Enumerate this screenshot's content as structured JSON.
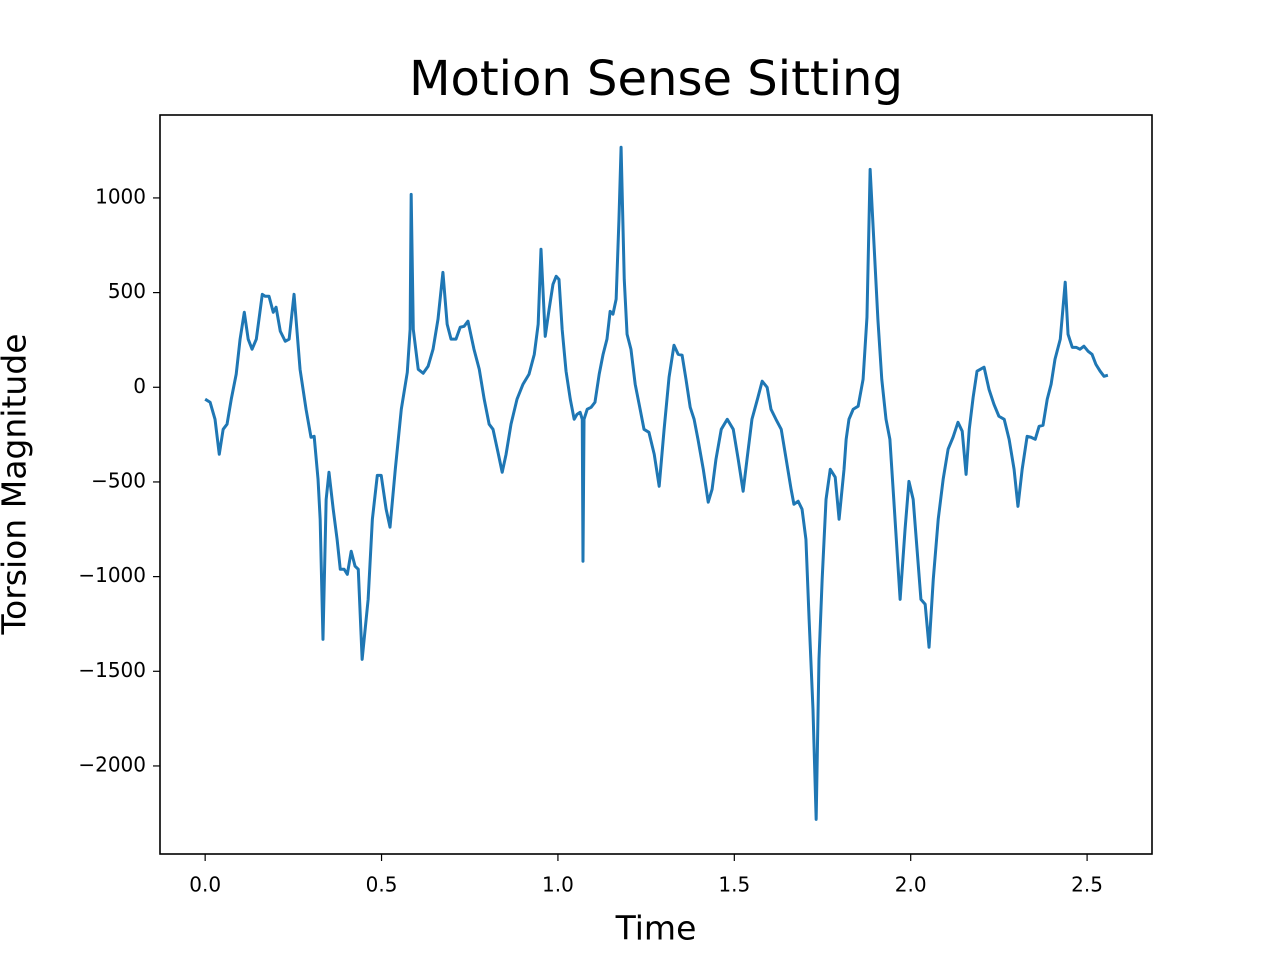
{
  "chart_data": {
    "type": "line",
    "title": "Motion Sense Sitting",
    "x_label": "Time",
    "y_label": "Torsion Magnitude",
    "color": "#1f77b4",
    "x": [
      0,
      0.014,
      0.028,
      0.04,
      0.051,
      0.062,
      0.074,
      0.088,
      0.099,
      0.111,
      0.122,
      0.133,
      0.145,
      0.162,
      0.17,
      0.181,
      0.193,
      0.201,
      0.213,
      0.227,
      0.238,
      0.252,
      0.269,
      0.286,
      0.3,
      0.309,
      0.32,
      0.326,
      0.334,
      0.343,
      0.351,
      0.363,
      0.374,
      0.383,
      0.394,
      0.403,
      0.414,
      0.425,
      0.434,
      0.445,
      0.462,
      0.474,
      0.488,
      0.499,
      0.513,
      0.524,
      0.539,
      0.556,
      0.573,
      0.581,
      0.584,
      0.59,
      0.604,
      0.618,
      0.632,
      0.646,
      0.66,
      0.674,
      0.686,
      0.697,
      0.711,
      0.723,
      0.734,
      0.745,
      0.762,
      0.777,
      0.791,
      0.805,
      0.816,
      0.83,
      0.842,
      0.853,
      0.867,
      0.884,
      0.901,
      0.918,
      0.933,
      0.944,
      0.952,
      0.964,
      0.975,
      0.986,
      0.995,
      1.003,
      1.012,
      1.023,
      1.035,
      1.046,
      1.054,
      1.063,
      1.069,
      1.071,
      1.074,
      1.083,
      1.094,
      1.105,
      1.117,
      1.128,
      1.139,
      1.148,
      1.156,
      1.165,
      1.173,
      1.179,
      1.188,
      1.196,
      1.207,
      1.219,
      1.233,
      1.244,
      1.258,
      1.273,
      1.287,
      1.301,
      1.315,
      1.329,
      1.341,
      1.352,
      1.363,
      1.375,
      1.386,
      1.397,
      1.412,
      1.426,
      1.437,
      1.448,
      1.463,
      1.48,
      1.497,
      1.511,
      1.525,
      1.536,
      1.55,
      1.567,
      1.579,
      1.593,
      1.604,
      1.618,
      1.633,
      1.647,
      1.661,
      1.669,
      1.681,
      1.692,
      1.703,
      1.712,
      1.723,
      1.732,
      1.74,
      1.749,
      1.76,
      1.772,
      1.786,
      1.797,
      1.811,
      1.817,
      1.825,
      1.837,
      1.851,
      1.865,
      1.876,
      1.885,
      1.896,
      1.907,
      1.918,
      1.93,
      1.941,
      1.952,
      1.97,
      1.984,
      1.995,
      2.007,
      2.018,
      2.029,
      2.041,
      2.052,
      2.064,
      2.078,
      2.092,
      2.106,
      2.12,
      2.134,
      2.146,
      2.157,
      2.166,
      2.177,
      2.188,
      2.208,
      2.222,
      2.236,
      2.25,
      2.265,
      2.279,
      2.293,
      2.304,
      2.316,
      2.33,
      2.341,
      2.353,
      2.364,
      2.375,
      2.387,
      2.398,
      2.409,
      2.424,
      2.438,
      2.446,
      2.458,
      2.469,
      2.48,
      2.491,
      2.503,
      2.514,
      2.525,
      2.537,
      2.548,
      2.559
    ],
    "values": [
      -63,
      -79,
      -169,
      -354,
      -222,
      -195,
      -63,
      69,
      254,
      396,
      254,
      201,
      254,
      491,
      481,
      481,
      396,
      423,
      296,
      243,
      254,
      491,
      95,
      -116,
      -264,
      -259,
      -486,
      -697,
      -1331,
      -592,
      -449,
      -644,
      -803,
      -961,
      -961,
      -988,
      -866,
      -945,
      -961,
      -1437,
      -1120,
      -697,
      -465,
      -465,
      -644,
      -739,
      -433,
      -116,
      79,
      306,
      1019,
      306,
      95,
      74,
      111,
      201,
      359,
      607,
      333,
      254,
      254,
      317,
      322,
      349,
      201,
      95,
      -63,
      -195,
      -222,
      -343,
      -449,
      -354,
      -195,
      -63,
      16,
      69,
      174,
      333,
      729,
      269,
      412,
      544,
      586,
      570,
      306,
      85,
      -63,
      -169,
      -143,
      -132,
      -169,
      -919,
      -169,
      -116,
      -106,
      -79,
      69,
      174,
      254,
      401,
      386,
      465,
      887,
      1268,
      570,
      280,
      201,
      16,
      -116,
      -222,
      -238,
      -354,
      -523,
      -222,
      53,
      222,
      174,
      169,
      42,
      -106,
      -169,
      -275,
      -433,
      -607,
      -539,
      -380,
      -222,
      -169,
      -222,
      -380,
      -549,
      -380,
      -169,
      -53,
      32,
      0,
      -116,
      -169,
      -222,
      -380,
      -539,
      -618,
      -602,
      -644,
      -803,
      -1225,
      -1701,
      -2282,
      -1437,
      -1014,
      -592,
      -433,
      -475,
      -697,
      -433,
      -275,
      -169,
      -116,
      -100,
      42,
      370,
      1151,
      755,
      359,
      42,
      -169,
      -275,
      -592,
      -1120,
      -750,
      -497,
      -592,
      -856,
      -1120,
      -1146,
      -1373,
      -1014,
      -697,
      -486,
      -327,
      -264,
      -185,
      -232,
      -460,
      -222,
      -53,
      85,
      106,
      -11,
      -90,
      -153,
      -169,
      -275,
      -433,
      -629,
      -433,
      -259,
      -264,
      -275,
      -206,
      -201,
      -63,
      16,
      148,
      254,
      555,
      280,
      211,
      211,
      201,
      217,
      190,
      174,
      121,
      85,
      58,
      64
    ],
    "xlim": [
      -0.128,
      2.684
    ],
    "ylim": [
      -2465,
      1438
    ],
    "xticks": [
      {
        "value": 0,
        "label": "0.0"
      },
      0.5,
      {
        "value": 1,
        "label": "1.0"
      },
      1.5,
      {
        "value": 2,
        "label": "2.0"
      },
      2.5
    ],
    "yticks": [
      {
        "value": -2000,
        "label": "−2000"
      },
      {
        "value": -1500,
        "label": "−1500"
      },
      {
        "value": -1000,
        "label": "−1000"
      },
      {
        "value": -500,
        "label": "−500"
      },
      0,
      500,
      1000
    ]
  }
}
